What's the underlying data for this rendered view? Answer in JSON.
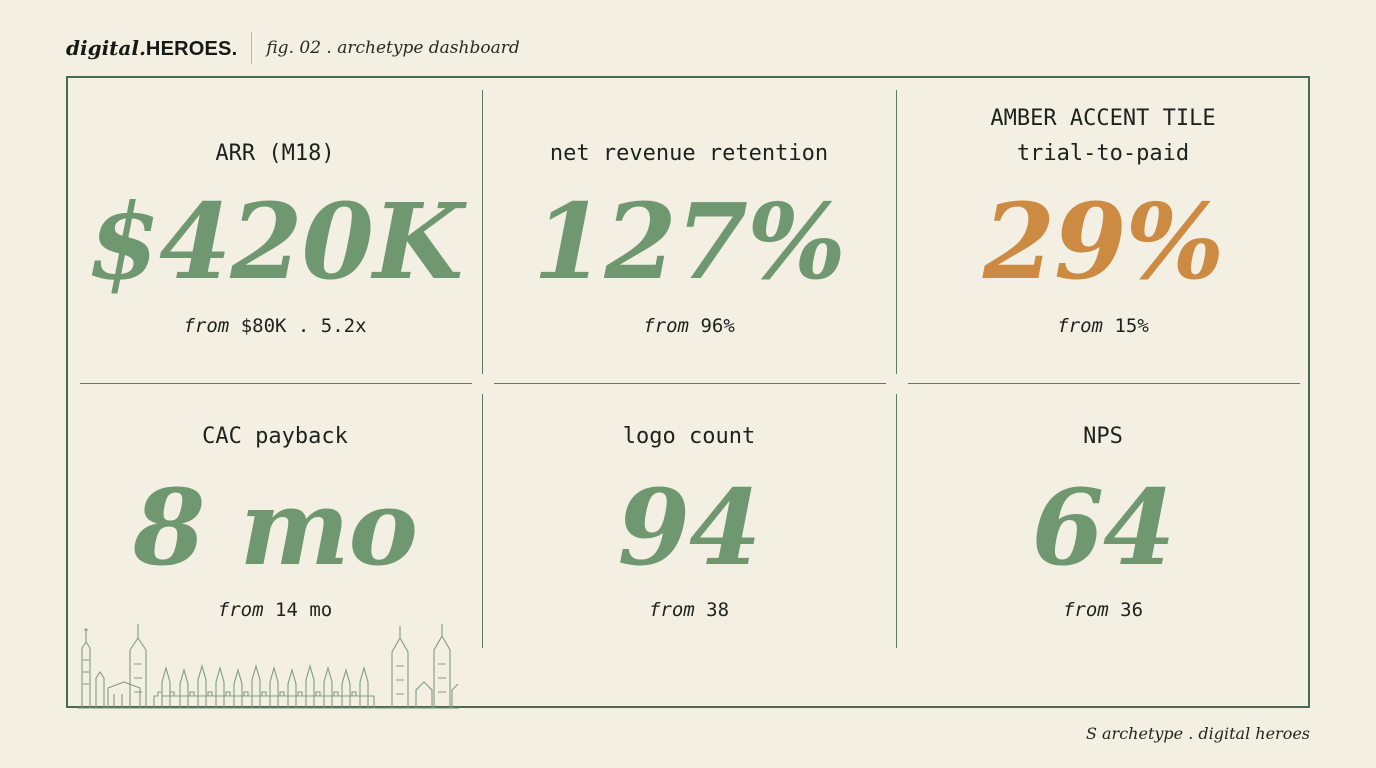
{
  "header": {
    "brand_italic": "digital.",
    "brand_bold": "HEROES.",
    "caption": "fig. 02 . archetype dashboard"
  },
  "tiles": [
    {
      "label": "ARR (M18)",
      "value": "$420K",
      "from_word": "from",
      "from_value": "$80K . 5.2x"
    },
    {
      "label": "net revenue retention",
      "value": "127%",
      "from_word": "from",
      "from_value": "96%"
    },
    {
      "kicker": "AMBER ACCENT TILE",
      "label": "trial-to-paid",
      "value": "29%",
      "from_word": "from",
      "from_value": "15%"
    },
    {
      "label": "CAC payback",
      "value": "8 mo",
      "from_word": "from",
      "from_value": "14 mo"
    },
    {
      "label": "logo count",
      "value": "94",
      "from_word": "from",
      "from_value": "38"
    },
    {
      "label": "NPS",
      "value": "64",
      "from_word": "from",
      "from_value": "36"
    }
  ],
  "footer": {
    "text": "S archetype . digital heroes"
  },
  "colors": {
    "background": "#f4efe3",
    "frame": "#4b6b50",
    "green_value": "#6f9871",
    "amber_value": "#cc8a42",
    "ink": "#1c221d"
  }
}
